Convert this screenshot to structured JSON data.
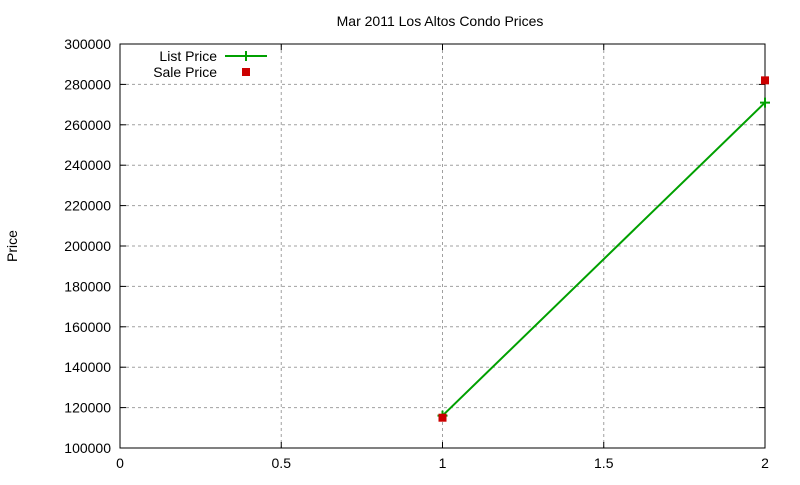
{
  "chart_data": {
    "type": "line",
    "title": "Mar 2011 Los Altos Condo Prices",
    "xlabel": "",
    "ylabel": "Price",
    "xlim": [
      0,
      2
    ],
    "ylim": [
      100000,
      300000
    ],
    "xticks": [
      "0",
      "0.5",
      "1",
      "1.5",
      "2"
    ],
    "xtick_values": [
      0,
      0.5,
      1,
      1.5,
      2
    ],
    "yticks": [
      "100000",
      "120000",
      "140000",
      "160000",
      "180000",
      "200000",
      "220000",
      "240000",
      "260000",
      "280000",
      "300000"
    ],
    "ytick_values": [
      100000,
      120000,
      140000,
      160000,
      180000,
      200000,
      220000,
      240000,
      260000,
      280000,
      300000
    ],
    "grid": true,
    "legend_placement": "top-left",
    "series": [
      {
        "name": "List Price",
        "style": "linespoints",
        "marker": "plus",
        "color": "#00a000",
        "x": [
          1,
          2
        ],
        "y": [
          116000,
          271000
        ]
      },
      {
        "name": "Sale Price",
        "style": "points",
        "marker": "square",
        "color": "#cc0000",
        "x": [
          1,
          2
        ],
        "y": [
          115000,
          282000
        ]
      }
    ]
  }
}
